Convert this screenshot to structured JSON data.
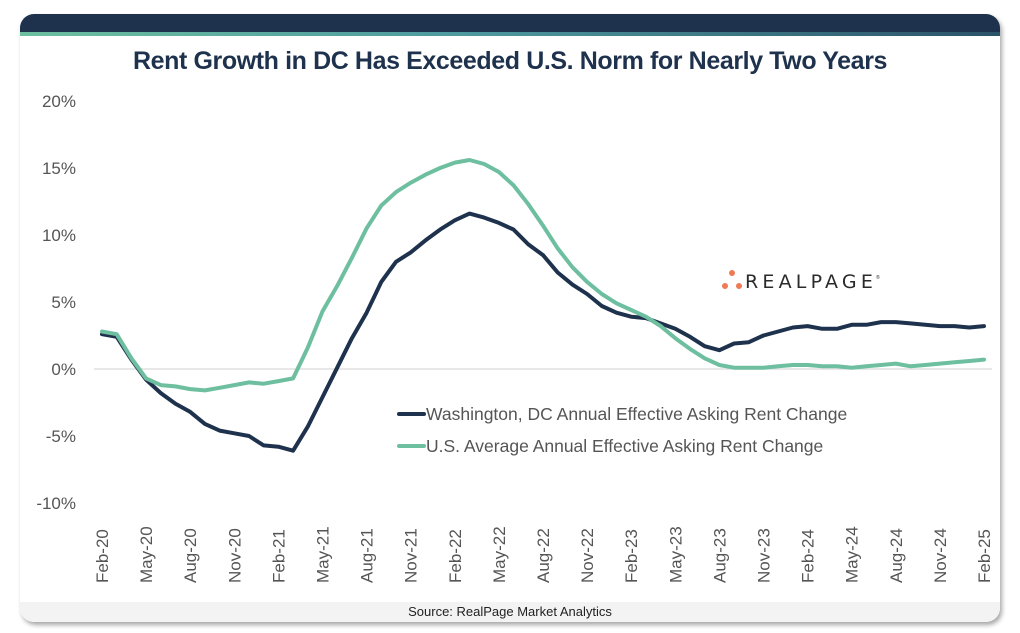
{
  "footer": {
    "source": "Source: RealPage Market Analytics"
  },
  "logo": {
    "text": "REALPAGE",
    "trademark": "®",
    "dot_color": "#ef7a55"
  },
  "colors": {
    "frame_header": "#1e324d",
    "dc_series": "#1e324d",
    "us_series": "#6dbfa0",
    "axis_text": "#555555"
  },
  "chart_data": {
    "type": "line",
    "title": "Rent Growth in DC Has Exceeded U.S. Norm for Nearly Two Years",
    "xlabel": "",
    "ylabel": "",
    "ylim": [
      -10,
      20
    ],
    "yticks": [
      20,
      15,
      10,
      5,
      0,
      -5,
      -10
    ],
    "ytick_labels": [
      "20%",
      "15%",
      "10%",
      "5%",
      "0%",
      "-5%",
      "-10%"
    ],
    "grid": false,
    "zero_line": true,
    "legend_position": "center-bottom",
    "x": [
      "Feb-20",
      "Mar-20",
      "Apr-20",
      "May-20",
      "Jun-20",
      "Jul-20",
      "Aug-20",
      "Sep-20",
      "Oct-20",
      "Nov-20",
      "Dec-20",
      "Jan-21",
      "Feb-21",
      "Mar-21",
      "Apr-21",
      "May-21",
      "Jun-21",
      "Jul-21",
      "Aug-21",
      "Sep-21",
      "Oct-21",
      "Nov-21",
      "Dec-21",
      "Jan-22",
      "Feb-22",
      "Mar-22",
      "Apr-22",
      "May-22",
      "Jun-22",
      "Jul-22",
      "Aug-22",
      "Sep-22",
      "Oct-22",
      "Nov-22",
      "Dec-22",
      "Jan-23",
      "Feb-23",
      "Mar-23",
      "Apr-23",
      "May-23",
      "Jun-23",
      "Jul-23",
      "Aug-23",
      "Sep-23",
      "Oct-23",
      "Nov-23",
      "Dec-23",
      "Jan-24",
      "Feb-24",
      "Mar-24",
      "Apr-24",
      "May-24",
      "Jun-24",
      "Jul-24",
      "Aug-24",
      "Sep-24",
      "Oct-24",
      "Nov-24",
      "Dec-24",
      "Jan-25",
      "Feb-25"
    ],
    "xtick_labels": [
      "Feb-20",
      "May-20",
      "Aug-20",
      "Nov-20",
      "Feb-21",
      "May-21",
      "Aug-21",
      "Nov-21",
      "Feb-22",
      "May-22",
      "Aug-22",
      "Nov-22",
      "Feb-23",
      "May-23",
      "Aug-23",
      "Nov-23",
      "Feb-24",
      "May-24",
      "Aug-24",
      "Nov-24",
      "Feb-25"
    ],
    "series": [
      {
        "name": "Washington, DC Annual Effective Asking Rent Change",
        "color": "#1e324d",
        "values": [
          2.6,
          2.4,
          0.7,
          -0.8,
          -1.8,
          -2.6,
          -3.2,
          -4.1,
          -4.6,
          -4.8,
          -5.0,
          -5.7,
          -5.8,
          -6.1,
          -4.3,
          -2.1,
          0.1,
          2.3,
          4.2,
          6.5,
          8.0,
          8.7,
          9.6,
          10.4,
          11.1,
          11.6,
          11.3,
          10.9,
          10.4,
          9.3,
          8.5,
          7.2,
          6.3,
          5.6,
          4.7,
          4.2,
          3.9,
          3.8,
          3.4,
          3.0,
          2.4,
          1.7,
          1.4,
          1.9,
          2.0,
          2.5,
          2.8,
          3.1,
          3.2,
          3.0,
          3.0,
          3.3,
          3.3,
          3.5,
          3.5,
          3.4,
          3.3,
          3.2,
          3.2,
          3.1,
          3.2
        ]
      },
      {
        "name": "U.S. Average Annual Effective Asking Rent Change",
        "color": "#6dbfa0",
        "values": [
          2.8,
          2.6,
          0.8,
          -0.7,
          -1.2,
          -1.3,
          -1.5,
          -1.6,
          -1.4,
          -1.2,
          -1.0,
          -1.1,
          -0.9,
          -0.7,
          1.6,
          4.3,
          6.2,
          8.3,
          10.5,
          12.2,
          13.2,
          13.9,
          14.5,
          15.0,
          15.4,
          15.6,
          15.3,
          14.7,
          13.7,
          12.3,
          10.7,
          9.0,
          7.6,
          6.5,
          5.6,
          4.9,
          4.4,
          3.9,
          3.2,
          2.3,
          1.5,
          0.8,
          0.3,
          0.1,
          0.1,
          0.1,
          0.2,
          0.3,
          0.3,
          0.2,
          0.2,
          0.1,
          0.2,
          0.3,
          0.4,
          0.2,
          0.3,
          0.4,
          0.5,
          0.6,
          0.7
        ]
      }
    ]
  }
}
